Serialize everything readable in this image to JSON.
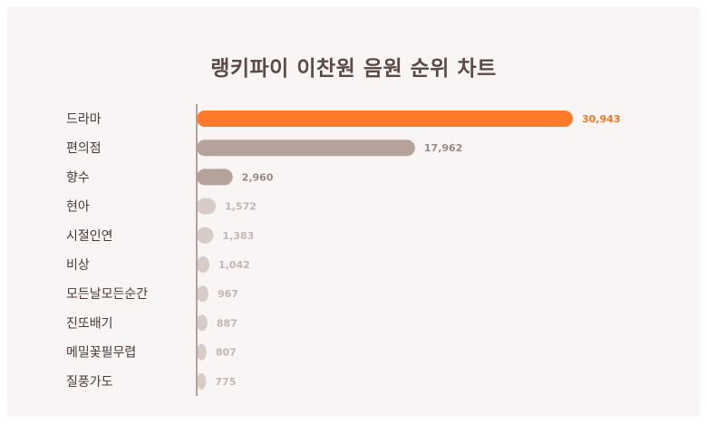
{
  "title": "랭키파이 이찬원 음원 순위 차트",
  "colors": {
    "highlight": "#ff7b29",
    "dark": "#b5a29b",
    "light": "#d8ccc7",
    "label_highlight": "#f07a22",
    "label_dark": "#9a8983",
    "label_light": "#c3b6b1",
    "category_text": "#4a3a36",
    "axis": "#b3a19a"
  },
  "chart_data": {
    "type": "bar",
    "orientation": "horizontal",
    "title": "랭키파이 이찬원 음원 순위 차트",
    "categories": [
      "드라마",
      "편의점",
      "향수",
      "현아",
      "시절인연",
      "비상",
      "모든날모든순간",
      "진또배기",
      "메밀꽃필무렵",
      "질풍가도"
    ],
    "values": [
      30943,
      17962,
      2960,
      1572,
      1383,
      1042,
      967,
      887,
      807,
      775
    ],
    "value_labels": [
      "30,943",
      "17,962",
      "2,960",
      "1,572",
      "1,383",
      "1,042",
      "967",
      "887",
      "807",
      "775"
    ],
    "xlim": [
      0,
      30943
    ],
    "grid": false,
    "legend": "none"
  }
}
